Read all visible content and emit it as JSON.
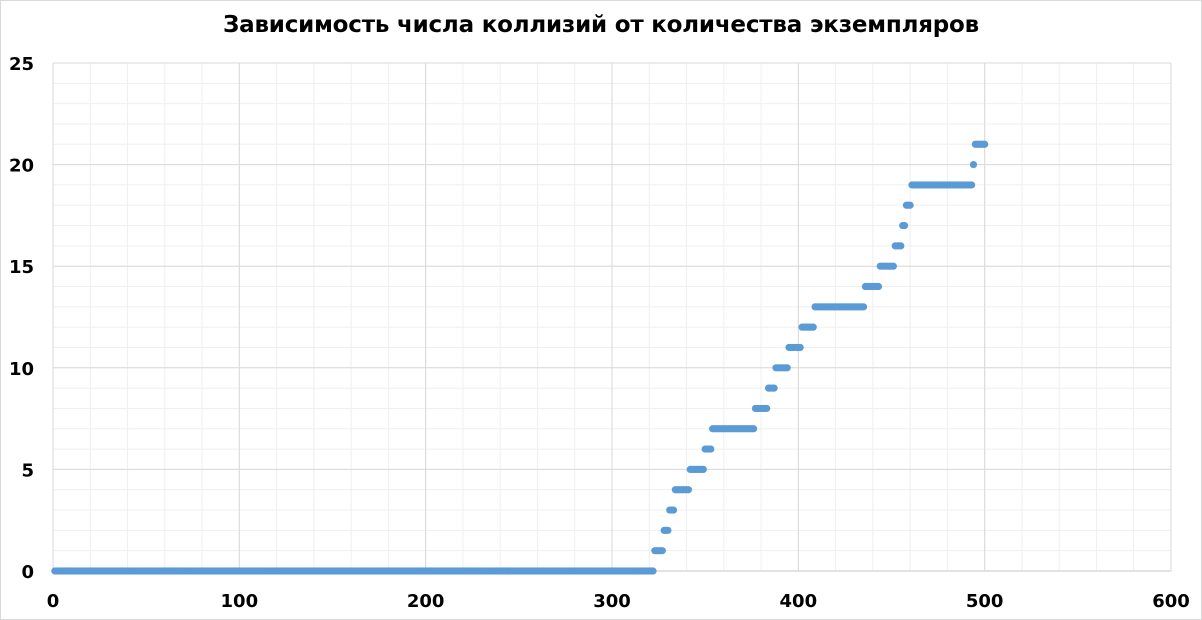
{
  "chart_data": {
    "type": "scatter",
    "title": "Зависимость числа коллизий от количества экземпляров",
    "xlabel": "",
    "ylabel": "",
    "xlim": [
      0,
      600
    ],
    "ylim": [
      0,
      25
    ],
    "x_ticks": [
      0,
      100,
      200,
      300,
      400,
      500,
      600
    ],
    "y_ticks": [
      0,
      5,
      10,
      15,
      20,
      25
    ],
    "grid": {
      "major": true,
      "minor": true
    },
    "legend": "none",
    "color": "#5b9bd5",
    "series": [
      {
        "name": "",
        "segments": [
          {
            "x_start": 1,
            "x_end": 322,
            "y": 0
          },
          {
            "x_start": 323,
            "x_end": 327,
            "y": 1
          },
          {
            "x_start": 328,
            "x_end": 330,
            "y": 2
          },
          {
            "x_start": 331,
            "x_end": 333,
            "y": 3
          },
          {
            "x_start": 334,
            "x_end": 341,
            "y": 4
          },
          {
            "x_start": 342,
            "x_end": 349,
            "y": 5
          },
          {
            "x_start": 350,
            "x_end": 353,
            "y": 6
          },
          {
            "x_start": 354,
            "x_end": 376,
            "y": 7
          },
          {
            "x_start": 377,
            "x_end": 383,
            "y": 8
          },
          {
            "x_start": 384,
            "x_end": 387,
            "y": 9
          },
          {
            "x_start": 388,
            "x_end": 394,
            "y": 10
          },
          {
            "x_start": 395,
            "x_end": 401,
            "y": 11
          },
          {
            "x_start": 402,
            "x_end": 408,
            "y": 12
          },
          {
            "x_start": 409,
            "x_end": 435,
            "y": 13
          },
          {
            "x_start": 436,
            "x_end": 443,
            "y": 14
          },
          {
            "x_start": 444,
            "x_end": 451,
            "y": 15
          },
          {
            "x_start": 452,
            "x_end": 455,
            "y": 16
          },
          {
            "x_start": 456,
            "x_end": 457,
            "y": 17
          },
          {
            "x_start": 458,
            "x_end": 460,
            "y": 18
          },
          {
            "x_start": 461,
            "x_end": 493,
            "y": 19
          },
          {
            "x_start": 494,
            "x_end": 494,
            "y": 20
          },
          {
            "x_start": 495,
            "x_end": 500,
            "y": 21
          }
        ]
      }
    ]
  }
}
